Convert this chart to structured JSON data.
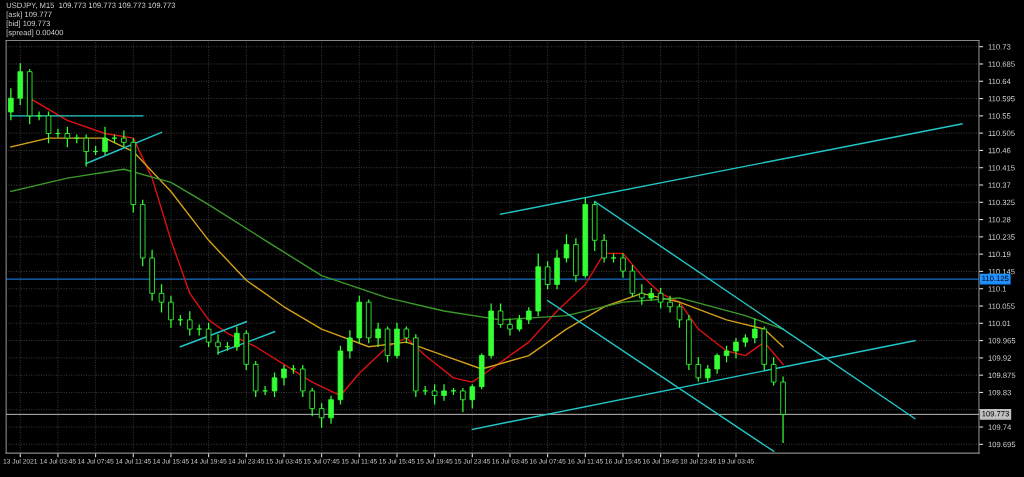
{
  "chart_data": {
    "type": "candlestick",
    "color": "#33ff33",
    "annotations": [
      "USDJPY, M15  109.773 109.773 109.773 109.773",
      "[ask] 109.777",
      "[bid] 109.773",
      "[spread] 0.00400"
    ],
    "categories": [
      null,
      "13 Jul 2021",
      null,
      null,
      null,
      "14 Jul 03:45",
      null,
      null,
      null,
      "14 Jul 07:45",
      null,
      null,
      null,
      "14 Jul 11:45",
      null,
      null,
      null,
      "14 Jul 15:45",
      null,
      null,
      null,
      "14 Jul 19:45",
      null,
      null,
      null,
      "14 Jul 23:45",
      null,
      null,
      null,
      "15 Jul 03:45",
      null,
      null,
      null,
      "15 Jul 07:45",
      null,
      null,
      null,
      "15 Jul 11:45",
      null,
      null,
      null,
      "15 Jul 15:45",
      null,
      null,
      null,
      "15 Jul 19:45",
      null,
      null,
      null,
      "15 Jul 23:45",
      null,
      null,
      null,
      "16 Jul 03:45",
      null,
      null,
      null,
      "16 Jul 07:45",
      null,
      null,
      null,
      "16 Jul 11:45",
      null,
      null,
      null,
      "16 Jul 15:45",
      null,
      null,
      null,
      "16 Jul 19:45",
      null,
      null,
      null,
      "18 Jul 23:45",
      null,
      null,
      null,
      "19 Jul 03:45",
      null,
      null,
      null,
      null,
      null,
      null,
      null,
      null,
      null,
      null,
      null,
      null,
      null,
      null,
      null,
      null,
      null,
      null,
      null,
      null,
      null,
      null,
      null,
      null,
      null,
      null
    ],
    "ohlc": [
      [
        110.56,
        110.62,
        110.54,
        110.596
      ],
      [
        110.596,
        110.685,
        110.58,
        110.665
      ],
      [
        110.665,
        110.67,
        110.53,
        110.55
      ],
      [
        110.55,
        110.56,
        110.54,
        110.55
      ],
      [
        110.55,
        110.56,
        110.48,
        110.504
      ],
      [
        110.504,
        110.515,
        110.495,
        110.504
      ],
      [
        110.504,
        110.52,
        110.47,
        110.492
      ],
      [
        110.492,
        110.5,
        110.48,
        110.492
      ],
      [
        110.492,
        110.5,
        110.42,
        110.457
      ],
      [
        110.457,
        110.47,
        110.45,
        110.457
      ],
      [
        110.457,
        110.52,
        110.45,
        110.492
      ],
      [
        110.492,
        110.5,
        110.48,
        110.492
      ],
      [
        110.492,
        110.51,
        110.47,
        110.481
      ],
      [
        110.481,
        110.49,
        110.3,
        110.319
      ],
      [
        110.319,
        110.33,
        110.16,
        110.18
      ],
      [
        110.18,
        110.2,
        110.07,
        110.088
      ],
      [
        110.088,
        110.11,
        110.04,
        110.065
      ],
      [
        110.065,
        110.08,
        110.0,
        110.019
      ],
      [
        110.019,
        110.03,
        110.005,
        110.019
      ],
      [
        110.019,
        110.04,
        109.98,
        109.995
      ],
      [
        109.995,
        110.005,
        109.98,
        109.995
      ],
      [
        109.995,
        110.01,
        109.95,
        109.961
      ],
      [
        109.961,
        109.98,
        109.93,
        109.949
      ],
      [
        109.949,
        109.96,
        109.94,
        109.949
      ],
      [
        109.949,
        110.0,
        109.94,
        109.984
      ],
      [
        109.984,
        109.99,
        109.89,
        109.903
      ],
      [
        109.903,
        109.91,
        109.82,
        109.834
      ],
      [
        109.834,
        109.845,
        109.825,
        109.834
      ],
      [
        109.834,
        109.88,
        109.82,
        109.868
      ],
      [
        109.868,
        109.9,
        109.85,
        109.891
      ],
      [
        109.891,
        109.9,
        109.88,
        109.891
      ],
      [
        109.891,
        109.9,
        109.82,
        109.834
      ],
      [
        109.834,
        109.84,
        109.77,
        109.788
      ],
      [
        109.788,
        109.8,
        109.74,
        109.764
      ],
      [
        109.764,
        109.82,
        109.75,
        109.811
      ],
      [
        109.811,
        109.95,
        109.8,
        109.938
      ],
      [
        109.938,
        109.99,
        109.92,
        109.972
      ],
      [
        109.972,
        110.08,
        109.96,
        110.065
      ],
      [
        110.065,
        110.07,
        109.96,
        109.972
      ],
      [
        109.972,
        110.01,
        109.95,
        109.995
      ],
      [
        109.995,
        110.0,
        109.91,
        109.926
      ],
      [
        109.926,
        110.01,
        109.92,
        109.995
      ],
      [
        109.995,
        110.0,
        109.96,
        109.972
      ],
      [
        109.972,
        109.98,
        109.82,
        109.834
      ],
      [
        109.834,
        109.845,
        109.825,
        109.834
      ],
      [
        109.834,
        109.85,
        109.8,
        109.822
      ],
      [
        109.822,
        109.85,
        109.81,
        109.834
      ],
      [
        109.834,
        109.84,
        109.825,
        109.834
      ],
      [
        109.834,
        109.84,
        109.78,
        109.811
      ],
      [
        109.811,
        109.85,
        109.79,
        109.845
      ],
      [
        109.845,
        109.93,
        109.84,
        109.926
      ],
      [
        109.926,
        110.06,
        109.92,
        110.042
      ],
      [
        110.042,
        110.06,
        110.0,
        110.007
      ],
      [
        110.007,
        110.02,
        109.98,
        109.995
      ],
      [
        109.995,
        110.03,
        109.99,
        110.019
      ],
      [
        110.019,
        110.05,
        110.01,
        110.042
      ],
      [
        110.042,
        110.19,
        110.03,
        110.157
      ],
      [
        110.157,
        110.17,
        110.1,
        110.111
      ],
      [
        110.111,
        110.2,
        110.1,
        110.18
      ],
      [
        110.18,
        110.24,
        110.17,
        110.215
      ],
      [
        110.215,
        110.23,
        110.12,
        110.134
      ],
      [
        110.134,
        110.335,
        110.13,
        110.319
      ],
      [
        110.319,
        110.325,
        110.2,
        110.226
      ],
      [
        110.226,
        110.24,
        110.17,
        110.18
      ],
      [
        110.18,
        110.19,
        110.17,
        110.18
      ],
      [
        110.18,
        110.19,
        110.13,
        110.146
      ],
      [
        110.146,
        110.16,
        110.08,
        110.088
      ],
      [
        110.088,
        110.11,
        110.06,
        110.076
      ],
      [
        110.076,
        110.1,
        110.07,
        110.088
      ],
      [
        110.088,
        110.1,
        110.05,
        110.065
      ],
      [
        110.065,
        110.08,
        110.04,
        110.053
      ],
      [
        110.053,
        110.06,
        110.0,
        110.019
      ],
      [
        110.019,
        110.03,
        109.89,
        109.903
      ],
      [
        109.903,
        109.92,
        109.86,
        109.868
      ],
      [
        109.868,
        109.9,
        109.86,
        109.891
      ],
      [
        109.891,
        109.93,
        109.88,
        109.926
      ],
      [
        109.926,
        109.95,
        109.91,
        109.938
      ],
      [
        109.938,
        109.97,
        109.92,
        109.961
      ],
      [
        109.961,
        109.98,
        109.95,
        109.972
      ],
      [
        109.972,
        110.02,
        109.96,
        109.995
      ],
      [
        109.995,
        110.0,
        109.89,
        109.903
      ],
      [
        109.903,
        109.92,
        109.85,
        109.857
      ],
      [
        109.857,
        109.87,
        109.7,
        109.773
      ],
      null,
      null,
      null,
      null,
      null,
      null,
      null,
      null,
      null,
      null,
      null,
      null,
      null,
      null,
      null,
      null,
      null,
      null,
      null,
      null,
      null
    ],
    "series": [
      {
        "type": "line",
        "color": "#dd1111",
        "values": [
          null,
          null,
          110.596,
          null,
          null,
          null,
          110.538,
          null,
          null,
          null,
          110.504,
          null,
          null,
          110.492,
          null,
          110.388,
          null,
          110.226,
          null,
          110.088,
          null,
          110.019,
          null,
          109.984,
          null,
          null,
          109.949,
          null,
          null,
          109.903,
          null,
          null,
          109.857,
          null,
          null,
          109.822,
          null,
          109.88,
          null,
          null,
          109.949,
          null,
          109.972,
          null,
          109.926,
          null,
          null,
          109.868,
          null,
          109.857,
          null,
          109.891,
          null,
          null,
          null,
          109.961,
          null,
          null,
          110.042,
          null,
          null,
          110.111,
          null,
          110.192,
          null,
          110.192,
          null,
          110.134,
          null,
          110.088,
          null,
          110.065,
          null,
          109.995,
          null,
          null,
          109.938,
          null,
          109.926,
          null,
          109.961,
          null,
          109.903,
          null,
          null,
          null,
          null,
          null,
          null,
          null,
          null,
          null,
          null,
          null,
          null,
          null,
          null,
          null,
          null,
          null,
          null,
          null,
          null,
          null
        ]
      },
      {
        "type": "line",
        "color": "#d4a017",
        "values": [
          110.469,
          null,
          null,
          null,
          110.492,
          null,
          null,
          null,
          null,
          null,
          110.492,
          null,
          null,
          110.457,
          null,
          null,
          null,
          110.353,
          null,
          null,
          null,
          110.226,
          null,
          null,
          null,
          110.122,
          null,
          null,
          null,
          110.053,
          null,
          null,
          null,
          109.995,
          null,
          null,
          null,
          null,
          109.949,
          null,
          null,
          null,
          109.961,
          null,
          null,
          null,
          109.926,
          null,
          null,
          null,
          109.891,
          null,
          null,
          null,
          null,
          109.926,
          null,
          null,
          null,
          109.995,
          null,
          null,
          null,
          110.053,
          null,
          null,
          null,
          110.088,
          null,
          null,
          null,
          110.065,
          null,
          null,
          null,
          null,
          110.019,
          null,
          null,
          null,
          109.995,
          null,
          109.949,
          null,
          null,
          null,
          null,
          null,
          null,
          null,
          null,
          null,
          null,
          null,
          null,
          null,
          null,
          null,
          null,
          null,
          null,
          null,
          null,
          null
        ]
      },
      {
        "type": "line",
        "color": "#3c9a2a",
        "values": [
          110.353,
          null,
          null,
          null,
          null,
          null,
          110.388,
          null,
          null,
          null,
          null,
          null,
          110.411,
          null,
          null,
          null,
          null,
          110.377,
          null,
          null,
          null,
          110.319,
          null,
          null,
          null,
          null,
          null,
          110.226,
          null,
          null,
          null,
          null,
          null,
          110.134,
          null,
          null,
          null,
          null,
          null,
          null,
          110.076,
          null,
          null,
          null,
          null,
          null,
          110.042,
          null,
          null,
          null,
          null,
          null,
          110.019,
          null,
          null,
          null,
          null,
          null,
          null,
          110.03,
          null,
          null,
          null,
          null,
          null,
          110.065,
          null,
          null,
          null,
          null,
          null,
          110.076,
          null,
          null,
          null,
          null,
          null,
          null,
          110.03,
          null,
          null,
          null,
          109.995,
          null,
          null,
          null,
          null,
          null,
          null,
          null,
          null,
          null,
          null,
          null,
          null,
          null,
          null,
          null,
          null,
          null,
          null,
          null,
          null,
          null
        ]
      },
      {
        "type": "line",
        "color": "#22c8c8",
        "values": [
          110.55,
          null,
          null,
          null,
          null,
          null,
          null,
          null,
          null,
          null,
          null,
          null,
          null,
          null,
          110.55,
          null,
          null,
          null,
          null,
          null,
          null,
          null,
          null,
          null,
          null,
          null,
          null,
          null,
          null,
          null,
          null,
          null,
          null,
          null,
          null,
          null,
          null,
          null,
          null,
          null,
          null,
          null,
          null,
          null,
          null,
          null,
          null,
          null,
          null,
          null,
          null,
          null,
          null,
          null,
          null,
          null,
          null,
          null,
          null,
          null,
          null,
          null,
          null,
          null,
          null,
          null,
          null,
          null,
          null,
          null,
          null,
          null,
          null,
          null,
          null,
          null,
          null,
          null,
          null,
          null,
          null,
          null,
          null,
          null,
          null,
          null,
          null,
          null,
          null,
          null,
          null,
          null,
          null,
          null,
          null,
          null,
          null,
          null,
          null,
          null,
          null,
          null,
          null,
          null
        ]
      },
      {
        "type": "line",
        "color": "#22c8c8",
        "values": [
          null,
          null,
          null,
          null,
          null,
          null,
          null,
          null,
          110.426,
          null,
          null,
          null,
          null,
          null,
          null,
          null,
          110.507,
          null,
          null,
          null,
          null,
          null,
          null,
          null,
          null,
          null,
          null,
          null,
          null,
          null,
          null,
          null,
          null,
          null,
          null,
          null,
          null,
          null,
          null,
          null,
          null,
          null,
          null,
          null,
          null,
          null,
          null,
          null,
          null,
          null,
          null,
          null,
          null,
          null,
          null,
          null,
          null,
          null,
          null,
          null,
          null,
          null,
          null,
          null,
          null,
          null,
          null,
          null,
          null,
          null,
          null,
          null,
          null,
          null,
          null,
          null,
          null,
          null,
          null,
          null,
          null,
          null,
          null,
          null,
          null,
          null,
          null,
          null,
          null,
          null,
          null,
          null,
          null,
          null,
          null,
          null,
          null,
          null,
          null,
          null,
          null,
          null,
          null,
          null
        ]
      },
      {
        "type": "line",
        "color": "#22c8c8",
        "values": [
          null,
          null,
          null,
          null,
          null,
          null,
          null,
          null,
          null,
          null,
          null,
          null,
          null,
          null,
          null,
          null,
          null,
          null,
          109.949,
          null,
          null,
          null,
          null,
          null,
          null,
          110.014,
          null,
          null,
          null,
          null,
          null,
          null,
          null,
          null,
          null,
          null,
          null,
          null,
          null,
          null,
          null,
          null,
          null,
          null,
          null,
          null,
          null,
          null,
          null,
          null,
          null,
          null,
          null,
          null,
          null,
          null,
          null,
          null,
          null,
          null,
          null,
          null,
          null,
          null,
          null,
          null,
          null,
          null,
          null,
          null,
          null,
          null,
          null,
          null,
          null,
          null,
          null,
          null,
          null,
          null,
          null,
          null,
          null,
          null,
          null,
          null,
          null,
          null,
          null,
          null,
          null,
          null,
          null,
          null,
          null,
          null,
          null,
          null,
          null,
          null,
          null,
          null,
          null,
          null
        ]
      },
      {
        "type": "line",
        "color": "#22c8c8",
        "values": [
          null,
          null,
          null,
          null,
          null,
          null,
          null,
          null,
          null,
          null,
          null,
          null,
          null,
          null,
          null,
          null,
          null,
          null,
          null,
          null,
          null,
          null,
          109.933,
          null,
          null,
          null,
          null,
          null,
          109.988,
          null,
          null,
          null,
          null,
          null,
          null,
          null,
          null,
          null,
          null,
          null,
          null,
          null,
          null,
          null,
          null,
          null,
          null,
          null,
          null,
          null,
          null,
          null,
          null,
          null,
          null,
          null,
          null,
          null,
          null,
          null,
          null,
          null,
          null,
          null,
          null,
          null,
          null,
          null,
          null,
          null,
          null,
          null,
          null,
          null,
          null,
          null,
          null,
          null,
          null,
          null,
          null,
          null,
          null,
          null,
          null,
          null,
          null,
          null,
          null,
          null,
          null,
          null,
          null,
          null,
          null,
          null,
          null,
          null,
          null,
          null,
          null,
          null,
          null,
          null
        ]
      },
      {
        "type": "line",
        "color": "#22c8c8",
        "values": [
          null,
          null,
          null,
          null,
          null,
          null,
          null,
          null,
          null,
          null,
          null,
          null,
          null,
          null,
          null,
          null,
          null,
          null,
          null,
          null,
          null,
          null,
          null,
          null,
          null,
          null,
          null,
          null,
          null,
          null,
          null,
          null,
          null,
          null,
          null,
          null,
          null,
          null,
          null,
          null,
          null,
          null,
          null,
          null,
          null,
          null,
          null,
          null,
          null,
          null,
          null,
          null,
          110.294,
          null,
          null,
          null,
          null,
          null,
          null,
          null,
          null,
          null,
          null,
          null,
          null,
          null,
          null,
          null,
          null,
          null,
          null,
          null,
          null,
          null,
          null,
          null,
          null,
          null,
          null,
          null,
          null,
          null,
          null,
          null,
          null,
          null,
          null,
          null,
          null,
          null,
          null,
          null,
          null,
          null,
          null,
          null,
          null,
          null,
          null,
          null,
          null,
          110.529,
          null,
          null
        ]
      },
      {
        "type": "line",
        "color": "#22c8c8",
        "values": [
          null,
          null,
          null,
          null,
          null,
          null,
          null,
          null,
          null,
          null,
          null,
          null,
          null,
          null,
          null,
          null,
          null,
          null,
          null,
          null,
          null,
          null,
          null,
          null,
          null,
          null,
          null,
          null,
          null,
          null,
          null,
          null,
          null,
          null,
          null,
          null,
          null,
          null,
          null,
          null,
          null,
          null,
          null,
          null,
          null,
          null,
          null,
          null,
          null,
          null,
          null,
          null,
          null,
          null,
          null,
          null,
          null,
          null,
          null,
          null,
          null,
          null,
          110.327,
          null,
          null,
          null,
          null,
          null,
          null,
          null,
          null,
          null,
          null,
          null,
          null,
          null,
          null,
          null,
          null,
          null,
          null,
          null,
          null,
          null,
          null,
          null,
          null,
          null,
          null,
          null,
          null,
          null,
          null,
          null,
          null,
          null,
          109.762,
          null,
          null,
          null,
          null,
          null,
          null,
          null
        ]
      },
      {
        "type": "line",
        "color": "#22c8c8",
        "values": [
          null,
          null,
          null,
          null,
          null,
          null,
          null,
          null,
          null,
          null,
          null,
          null,
          null,
          null,
          null,
          null,
          null,
          null,
          null,
          null,
          null,
          null,
          null,
          null,
          null,
          null,
          null,
          null,
          null,
          null,
          null,
          null,
          null,
          null,
          null,
          null,
          null,
          null,
          null,
          null,
          null,
          null,
          null,
          null,
          null,
          null,
          null,
          null,
          null,
          null,
          null,
          null,
          null,
          null,
          null,
          null,
          null,
          110.069,
          null,
          null,
          null,
          null,
          null,
          null,
          null,
          null,
          null,
          null,
          null,
          null,
          null,
          null,
          null,
          null,
          null,
          null,
          null,
          null,
          null,
          null,
          null,
          109.677,
          null,
          null,
          null,
          null,
          null,
          null,
          null,
          null,
          null,
          null,
          null,
          null,
          null,
          null,
          null,
          null,
          null,
          null,
          null,
          null,
          null,
          null
        ]
      },
      {
        "type": "line",
        "color": "#22c8c8",
        "values": [
          null,
          null,
          null,
          null,
          null,
          null,
          null,
          null,
          null,
          null,
          null,
          null,
          null,
          null,
          null,
          null,
          null,
          null,
          null,
          null,
          null,
          null,
          null,
          null,
          null,
          null,
          null,
          null,
          null,
          null,
          null,
          null,
          null,
          null,
          null,
          null,
          null,
          null,
          null,
          null,
          null,
          null,
          null,
          null,
          null,
          null,
          null,
          null,
          null,
          109.734,
          null,
          null,
          null,
          null,
          null,
          null,
          null,
          null,
          null,
          null,
          null,
          null,
          null,
          null,
          null,
          null,
          null,
          null,
          null,
          null,
          null,
          null,
          null,
          null,
          null,
          null,
          null,
          null,
          null,
          null,
          null,
          null,
          null,
          null,
          null,
          null,
          null,
          null,
          null,
          null,
          null,
          null,
          null,
          null,
          null,
          null,
          109.965,
          null,
          null,
          null,
          null,
          null,
          null,
          null
        ]
      }
    ],
    "ref_lines": [
      {
        "axis": "y",
        "value": 110.125,
        "label": "110.125",
        "color": "#1e90ff"
      },
      {
        "axis": "y",
        "value": 109.773,
        "label": "109.773",
        "color": "#c0c0c0"
      }
    ],
    "ylim": [
      109.672,
      110.746
    ],
    "yticks": [
      109.695,
      109.74,
      {
        "value": 109.785,
        "label": null
      },
      109.83,
      109.875,
      109.92,
      109.965,
      110.01,
      110.055,
      110.1,
      110.145,
      110.19,
      110.235,
      110.28,
      110.325,
      110.37,
      110.415,
      110.46,
      110.505,
      110.55,
      110.595,
      110.64,
      110.685,
      110.73
    ],
    "grid": true,
    "legend": false
  }
}
